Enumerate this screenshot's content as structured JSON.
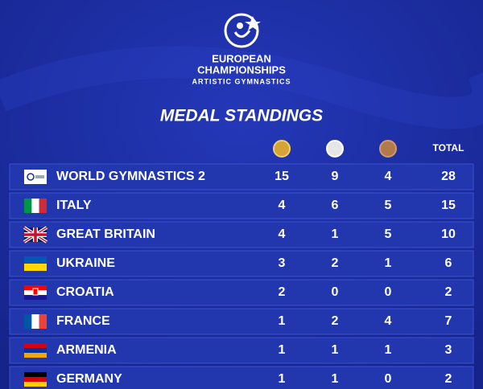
{
  "header": {
    "logo_lines": [
      "EUROPEAN",
      "CHAMPIONSHIPS",
      "ARTISTIC GYMNASTICS"
    ],
    "title": "MEDAL STANDINGS"
  },
  "table": {
    "total_header": "TOTAL",
    "rows": [
      [
        "WORLD GYMNASTICS 2",
        15,
        9,
        4,
        28
      ],
      [
        "ITALY",
        4,
        6,
        5,
        15
      ],
      [
        "GREAT BRITAIN",
        4,
        1,
        5,
        10
      ],
      [
        "UKRAINE",
        3,
        2,
        1,
        6
      ],
      [
        "CROATIA",
        2,
        0,
        0,
        2
      ],
      [
        "FRANCE",
        1,
        2,
        4,
        7
      ],
      [
        "ARMENIA",
        1,
        1,
        1,
        3
      ],
      [
        "GERMANY",
        1,
        1,
        0,
        2
      ]
    ]
  }
}
